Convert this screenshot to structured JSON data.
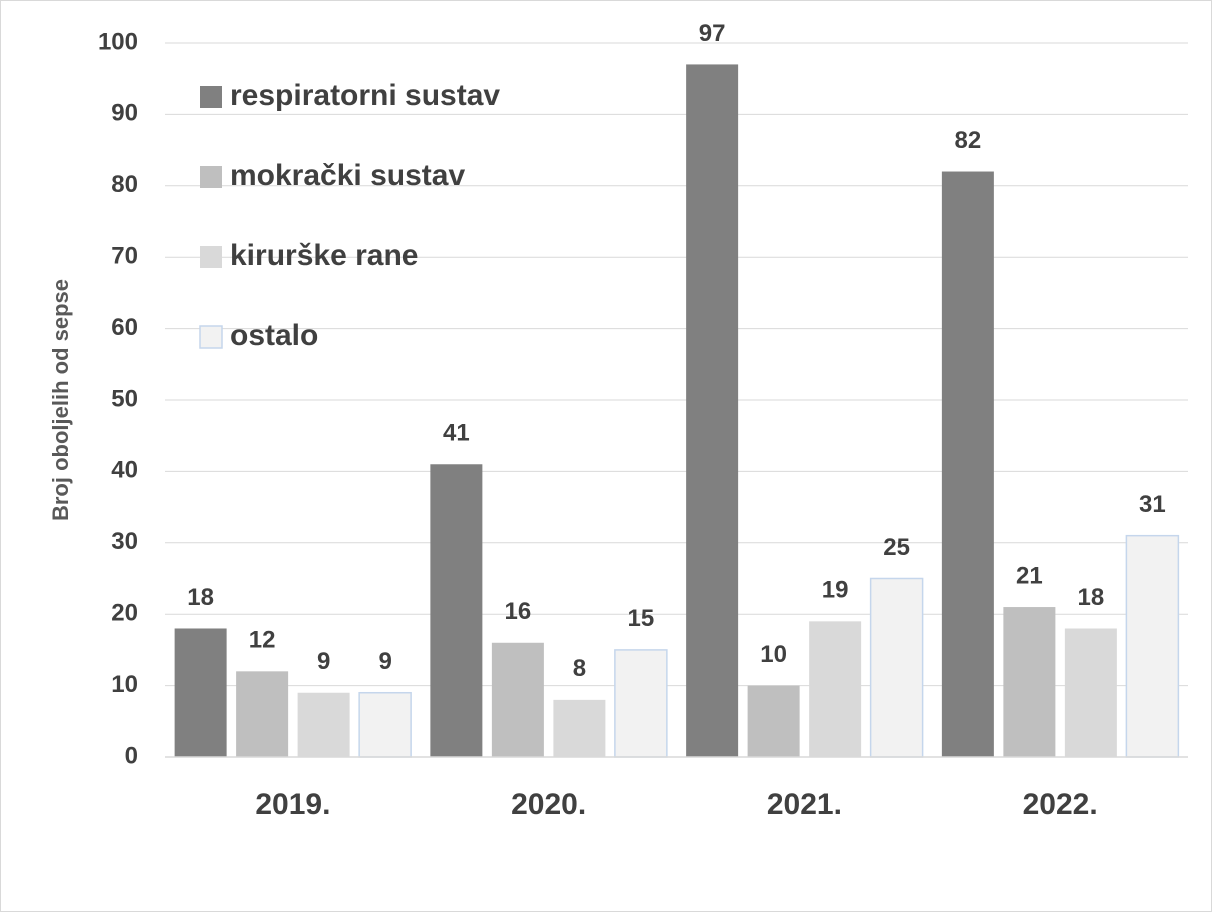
{
  "chart_data": {
    "type": "bar",
    "ylabel": "Broj oboljelih od sepse",
    "categories": [
      "2019.",
      "2020.",
      "2021.",
      "2022."
    ],
    "series": [
      {
        "name": "respiratorni sustav",
        "color": "#808080",
        "values": [
          18,
          41,
          97,
          82
        ]
      },
      {
        "name": "mokrački sustav",
        "color": "#bfbfbf",
        "values": [
          12,
          16,
          10,
          21
        ]
      },
      {
        "name": "kirurške rane",
        "color": "#d9d9d9",
        "values": [
          9,
          8,
          19,
          18
        ]
      },
      {
        "name": "ostalo",
        "color": "#f2f2f2",
        "edgecolor": "#c5d6ec",
        "values": [
          9,
          15,
          25,
          31
        ]
      }
    ],
    "ylim": [
      0,
      100
    ],
    "yticks": [
      0,
      10,
      20,
      30,
      40,
      50,
      60,
      70,
      80,
      90,
      100
    ],
    "grid": true,
    "legend": "top-left"
  }
}
